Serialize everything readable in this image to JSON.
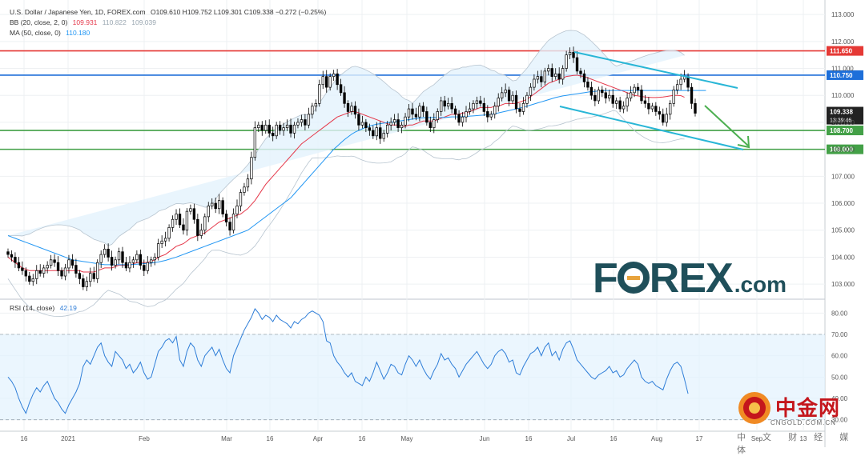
{
  "header": {
    "symbol": "U.S. Dollar / Japanese Yen, 1D, FOREX.com",
    "ohlc": "O109.610 H109.752 L109.301 C109.338 −0.272 (−0.25%)",
    "bb_label": "BB (20, close, 2, 0)",
    "bb_basis": "109.931",
    "bb_upper": "110.822",
    "bb_lower": "109.039",
    "ma_label": "MA (50, close, 0)",
    "ma_value": "110.180",
    "rsi_label": "RSI (14, close)",
    "rsi_value": "42.19"
  },
  "colors": {
    "up": "#26a69a",
    "candle": "#000000",
    "bb_basis": "#e5394b",
    "ma": "#2196f3",
    "band_fill": "#e3f2fd",
    "resistance_red": "#e53935",
    "resistance_blue": "#1e6fd9",
    "support_green": "#43a047",
    "channel": "#29b6d6",
    "arrow": "#4caf50",
    "rsi_line": "#2f7ed8",
    "rsi_fill": "#e3f2fd"
  },
  "price_axis": {
    "ticks": [
      "113.000",
      "112.000",
      "111.000",
      "110.000",
      "109.000",
      "108.000",
      "107.000",
      "106.000",
      "105.000",
      "104.000",
      "103.000"
    ],
    "current_price": "109.338",
    "countdown": "13:39:46",
    "levels": [
      {
        "value": 111.65,
        "label": "111.650",
        "color": "#e53935"
      },
      {
        "value": 110.75,
        "label": "110.750",
        "color": "#1e6fd9"
      },
      {
        "value": 108.7,
        "label": "108.700",
        "color": "#43a047"
      },
      {
        "value": 108.0,
        "label": "108.000",
        "color": "#43a047"
      }
    ]
  },
  "rsi_axis": {
    "ticks": [
      "80.00",
      "70.00",
      "60.00",
      "50.00",
      "40.00",
      "30.00"
    ],
    "current": "42.19"
  },
  "time_axis": {
    "labels": [
      "16",
      "2021",
      "Feb",
      "Mar",
      "16",
      "Apr",
      "16",
      "May",
      "Jun",
      "16",
      "Jul",
      "16",
      "Aug",
      "17",
      "Sep",
      "13"
    ]
  },
  "logo": {
    "brand": "F",
    "brand_rest": "REX",
    "suffix": ".com"
  },
  "watermark": {
    "cn": "中金网",
    "site": "CNGOLD.COM.CN",
    "tagline": "中 文 财 经 媒 体"
  },
  "chart_data": {
    "type": "candlestick",
    "title": "U.S. Dollar / Japanese Yen, 1D, FOREX.com",
    "ylim": [
      102.5,
      113.3
    ],
    "rsi_ylim": [
      25,
      85
    ],
    "rsi_bands": [
      30,
      70
    ],
    "close": [
      104.1,
      104.0,
      103.8,
      103.6,
      103.5,
      103.3,
      103.1,
      103.2,
      103.5,
      103.4,
      103.6,
      103.7,
      103.9,
      103.8,
      103.5,
      103.3,
      103.6,
      103.9,
      103.7,
      103.4,
      103.2,
      102.9,
      103.1,
      103.4,
      103.2,
      103.8,
      104.1,
      104.3,
      104.0,
      103.7,
      103.9,
      104.2,
      103.8,
      103.6,
      103.8,
      103.9,
      104.1,
      103.7,
      103.5,
      103.8,
      103.9,
      104.0,
      104.5,
      104.6,
      104.7,
      105.1,
      105.4,
      105.6,
      105.2,
      105.0,
      105.7,
      105.8,
      105.4,
      104.8,
      105.0,
      105.5,
      105.9,
      106.0,
      105.8,
      106.1,
      105.6,
      105.3,
      105.0,
      105.6,
      105.9,
      106.4,
      106.6,
      106.9,
      107.7,
      108.8,
      108.9,
      108.7,
      108.9,
      108.6,
      108.5,
      108.9,
      108.7,
      108.8,
      108.9,
      108.6,
      108.9,
      109.0,
      109.1,
      108.9,
      109.3,
      109.6,
      109.7,
      110.4,
      110.7,
      110.3,
      110.7,
      110.8,
      110.4,
      110.1,
      109.7,
      109.4,
      109.6,
      109.3,
      108.9,
      109.0,
      108.8,
      108.7,
      108.5,
      108.8,
      108.4,
      108.6,
      108.9,
      109.0,
      109.1,
      108.8,
      108.9,
      109.2,
      109.5,
      109.3,
      109.2,
      109.6,
      109.4,
      109.0,
      108.8,
      109.1,
      109.4,
      109.8,
      109.6,
      109.7,
      109.5,
      109.3,
      109.0,
      109.2,
      109.4,
      109.5,
      109.7,
      109.8,
      109.7,
      109.4,
      109.2,
      109.3,
      109.6,
      109.9,
      110.1,
      110.2,
      109.8,
      110.0,
      109.5,
      109.4,
      109.7,
      110.0,
      110.3,
      110.6,
      110.7,
      110.5,
      110.9,
      111.0,
      110.7,
      110.8,
      110.6,
      111.0,
      111.5,
      111.6,
      111.4,
      110.9,
      110.8,
      110.5,
      110.3,
      110.0,
      109.8,
      110.2,
      110.1,
      109.9,
      110.0,
      109.7,
      109.8,
      109.5,
      109.6,
      109.9,
      110.1,
      110.3,
      110.2,
      109.8,
      109.7,
      109.5,
      109.6,
      109.4,
      109.3,
      109.0,
      109.3,
      109.7,
      110.2,
      110.4,
      110.6,
      110.7,
      110.3,
      109.7,
      109.338
    ],
    "rsi": [
      50,
      48,
      45,
      40,
      36,
      33,
      38,
      42,
      45,
      43,
      46,
      48,
      44,
      40,
      38,
      35,
      33,
      37,
      40,
      43,
      47,
      55,
      58,
      56,
      60,
      64,
      66,
      60,
      57,
      55,
      62,
      60,
      58,
      54,
      56,
      52,
      54,
      57,
      52,
      49,
      50,
      56,
      62,
      64,
      67,
      68,
      66,
      69,
      58,
      55,
      62,
      66,
      64,
      58,
      55,
      60,
      62,
      64,
      60,
      63,
      58,
      54,
      52,
      60,
      64,
      68,
      72,
      75,
      78,
      82,
      80,
      77,
      79,
      78,
      76,
      79,
      77,
      76,
      75,
      73,
      76,
      75,
      77,
      78,
      80,
      81,
      80,
      79,
      76,
      67,
      66,
      60,
      57,
      55,
      52,
      50,
      52,
      48,
      47,
      46,
      50,
      48,
      52,
      57,
      53,
      49,
      52,
      56,
      55,
      52,
      51,
      56,
      60,
      58,
      55,
      58,
      54,
      51,
      49,
      53,
      56,
      61,
      58,
      59,
      56,
      54,
      50,
      53,
      56,
      58,
      60,
      62,
      59,
      56,
      54,
      56,
      60,
      62,
      63,
      61,
      57,
      58,
      52,
      51,
      55,
      58,
      61,
      62,
      64,
      60,
      64,
      66,
      60,
      62,
      58,
      63,
      66,
      67,
      63,
      58,
      56,
      54,
      52,
      50,
      49,
      51,
      52,
      53,
      55,
      52,
      53,
      50,
      51,
      54,
      56,
      58,
      56,
      50,
      48,
      47,
      48,
      46,
      45,
      44,
      49,
      53,
      56,
      57,
      55,
      49,
      42.19
    ],
    "bb_basis": [
      104.0,
      103.9,
      103.8,
      103.7,
      103.6,
      103.55,
      103.5,
      103.5,
      103.5,
      103.5,
      103.5,
      103.5,
      103.5,
      103.5,
      103.5,
      103.5,
      103.5,
      103.5,
      103.5,
      103.5,
      103.5,
      103.45,
      103.45,
      103.45,
      103.45,
      103.5,
      103.55,
      103.6,
      103.6,
      103.6,
      103.65,
      103.7,
      103.7,
      103.7,
      103.7,
      103.75,
      103.8,
      103.8,
      103.8,
      103.8,
      103.85,
      103.9,
      104.0,
      104.05,
      104.1,
      104.2,
      104.3,
      104.4,
      104.45,
      104.5,
      104.6,
      104.7,
      104.75,
      104.8,
      104.85,
      104.9,
      105.0,
      105.1,
      105.2,
      105.3,
      105.35,
      105.4,
      105.45,
      105.5,
      105.55,
      105.6,
      105.7,
      105.8,
      105.95,
      106.1,
      106.3,
      106.5,
      106.7,
      106.85,
      107.0,
      107.15,
      107.3,
      107.45,
      107.6,
      107.75,
      107.9,
      108.05,
      108.2,
      108.3,
      108.4,
      108.5,
      108.6,
      108.7,
      108.8,
      108.9,
      109.0,
      109.1,
      109.2,
      109.25,
      109.3,
      109.35,
      109.4,
      109.4,
      109.35,
      109.3,
      109.25,
      109.2,
      109.15,
      109.1,
      109.05,
      109.0,
      108.95,
      108.9,
      108.9,
      108.9,
      108.85,
      108.85,
      108.9,
      108.9,
      108.95,
      109.0,
      109.05,
      109.05,
      109.05,
      109.05,
      109.1,
      109.15,
      109.2,
      109.25,
      109.3,
      109.3,
      109.3,
      109.35,
      109.35,
      109.4,
      109.45,
      109.5,
      109.55,
      109.55,
      109.55,
      109.55,
      109.6,
      109.6,
      109.65,
      109.7,
      109.7,
      109.7,
      109.7,
      109.75,
      109.8,
      109.85,
      109.95,
      110.05,
      110.15,
      110.25,
      110.35,
      110.45,
      110.5,
      110.55,
      110.6,
      110.65,
      110.7,
      110.72,
      110.74,
      110.75,
      110.72,
      110.7,
      110.65,
      110.6,
      110.55,
      110.5,
      110.45,
      110.4,
      110.35,
      110.3,
      110.25,
      110.2,
      110.15,
      110.1,
      110.05,
      110.0,
      109.98,
      109.96,
      109.94,
      109.93,
      109.92,
      109.92,
      109.93,
      109.94,
      109.96,
      109.98,
      110.0,
      110.0,
      109.99,
      109.931
    ],
    "ma50": [
      104.8,
      104.75,
      104.7,
      104.65,
      104.6,
      104.55,
      104.5,
      104.45,
      104.4,
      104.35,
      104.3,
      104.25,
      104.2,
      104.15,
      104.1,
      104.05,
      104.0,
      103.95,
      103.9,
      103.88,
      103.86,
      103.84,
      103.82,
      103.8,
      103.78,
      103.76,
      103.74,
      103.72,
      103.72,
      103.72,
      103.72,
      103.72,
      103.72,
      103.72,
      103.72,
      103.73,
      103.74,
      103.75,
      103.76,
      103.77,
      103.78,
      103.8,
      103.82,
      103.85,
      103.88,
      103.92,
      103.96,
      104.0,
      104.05,
      104.1,
      104.15,
      104.2,
      104.25,
      104.3,
      104.35,
      104.4,
      104.45,
      104.5,
      104.55,
      104.6,
      104.65,
      104.7,
      104.75,
      104.8,
      104.85,
      104.9,
      104.95,
      105.0,
      105.1,
      105.2,
      105.3,
      105.4,
      105.5,
      105.6,
      105.7,
      105.8,
      105.9,
      106.0,
      106.1,
      106.2,
      106.35,
      106.5,
      106.65,
      106.8,
      106.95,
      107.1,
      107.25,
      107.4,
      107.55,
      107.7,
      107.85,
      108.0,
      108.12,
      108.24,
      108.36,
      108.46,
      108.56,
      108.64,
      108.7,
      108.76,
      108.82,
      108.86,
      108.9,
      108.93,
      108.95,
      108.97,
      108.99,
      109.0,
      109.02,
      109.04,
      109.06,
      109.08,
      109.1,
      109.12,
      109.14,
      109.16,
      109.17,
      109.18,
      109.18,
      109.18,
      109.18,
      109.18,
      109.18,
      109.19,
      109.2,
      109.2,
      109.2,
      109.21,
      109.22,
      109.23,
      109.24,
      109.25,
      109.26,
      109.27,
      109.28,
      109.3,
      109.32,
      109.35,
      109.38,
      109.41,
      109.44,
      109.47,
      109.5,
      109.53,
      109.56,
      109.6,
      109.64,
      109.68,
      109.72,
      109.76,
      109.8,
      109.84,
      109.88,
      109.92,
      109.95,
      109.98,
      110.0,
      110.02,
      110.04,
      110.06,
      110.08,
      110.1,
      110.12,
      110.14,
      110.15,
      110.16,
      110.17,
      110.18,
      110.18,
      110.18,
      110.18,
      110.18,
      110.18,
      110.18,
      110.18,
      110.18,
      110.18,
      110.18,
      110.18,
      110.18,
      110.18,
      110.18,
      110.18,
      110.18,
      110.18,
      110.18,
      110.18,
      110.18,
      110.18,
      110.18,
      110.18,
      110.18,
      110.18,
      110.18,
      110.18,
      110.18
    ]
  }
}
